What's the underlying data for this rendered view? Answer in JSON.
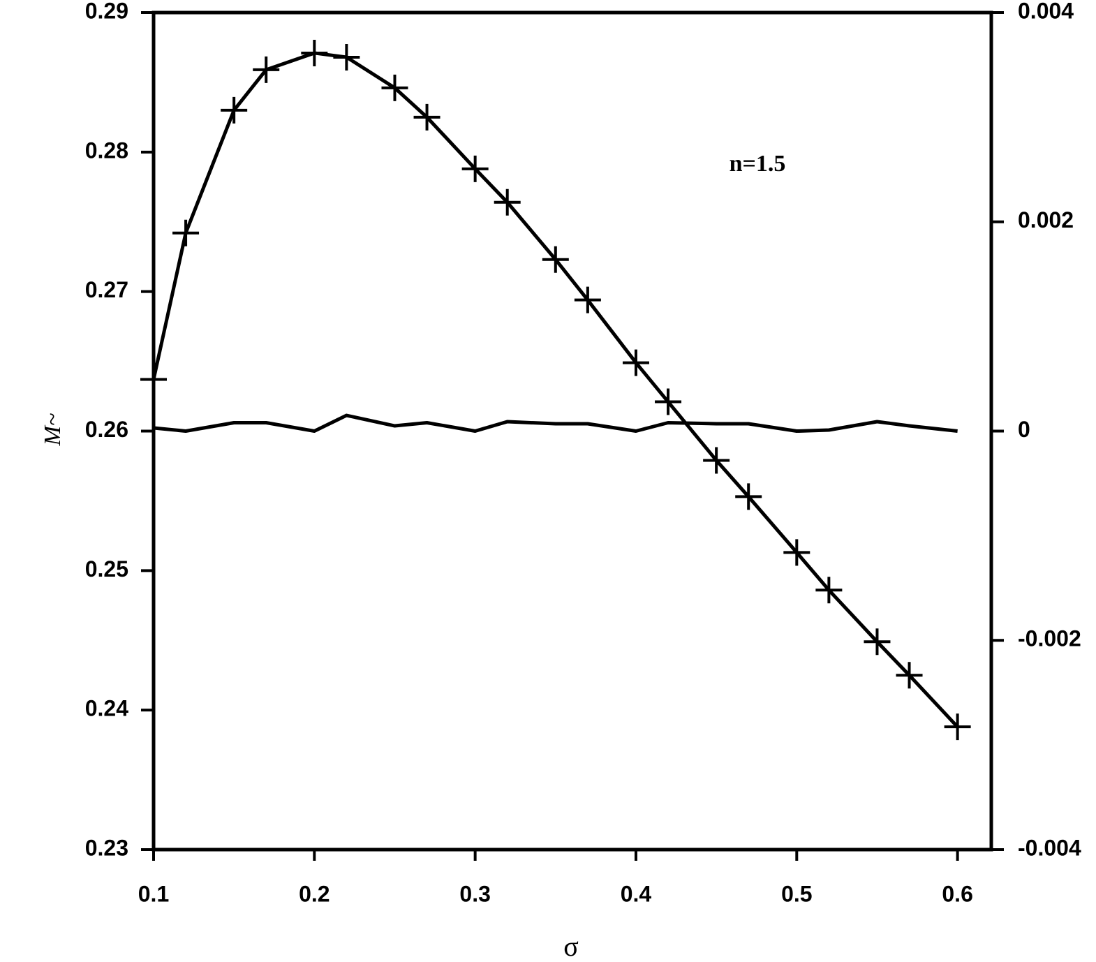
{
  "chart_data": {
    "type": "line",
    "annotation": "n=1.5",
    "x_label": "σ",
    "y_label": "M~",
    "x": [
      0.1,
      0.12,
      0.15,
      0.17,
      0.2,
      0.22,
      0.25,
      0.27,
      0.3,
      0.32,
      0.35,
      0.37,
      0.4,
      0.42,
      0.45,
      0.47,
      0.5,
      0.52,
      0.55,
      0.57,
      0.6
    ],
    "series": [
      {
        "color": "#000000",
        "marker": "plus",
        "values": [
          0.2637,
          0.2742,
          0.283,
          0.2859,
          0.2871,
          0.2868,
          0.2846,
          0.2825,
          0.2788,
          0.2764,
          0.2723,
          0.2694,
          0.2649,
          0.2621,
          0.2579,
          0.2553,
          0.2513,
          0.2486,
          0.2449,
          0.2425,
          0.2388
        ]
      },
      {
        "color": "#000000",
        "axis": "y2",
        "values": [
          3e-05,
          0,
          8e-05,
          8e-05,
          0,
          0.00015,
          5e-05,
          8e-05,
          0,
          9e-05,
          7e-05,
          7e-05,
          0,
          8e-05,
          7e-05,
          7e-05,
          0,
          1e-05,
          9e-05,
          5e-05,
          0
        ]
      }
    ],
    "xlim": [
      0.1,
      0.621
    ],
    "xticks": [
      0.1,
      0.2,
      0.3,
      0.4,
      0.5,
      0.6
    ],
    "ylim": [
      0.23,
      0.29
    ],
    "yticks": [
      0.23,
      0.24,
      0.25,
      0.26,
      0.27,
      0.28,
      0.29
    ],
    "y2lim": [
      -0.004,
      0.004
    ],
    "y2ticks": [
      -0.004,
      -0.002,
      0,
      0.002,
      0.004
    ]
  }
}
